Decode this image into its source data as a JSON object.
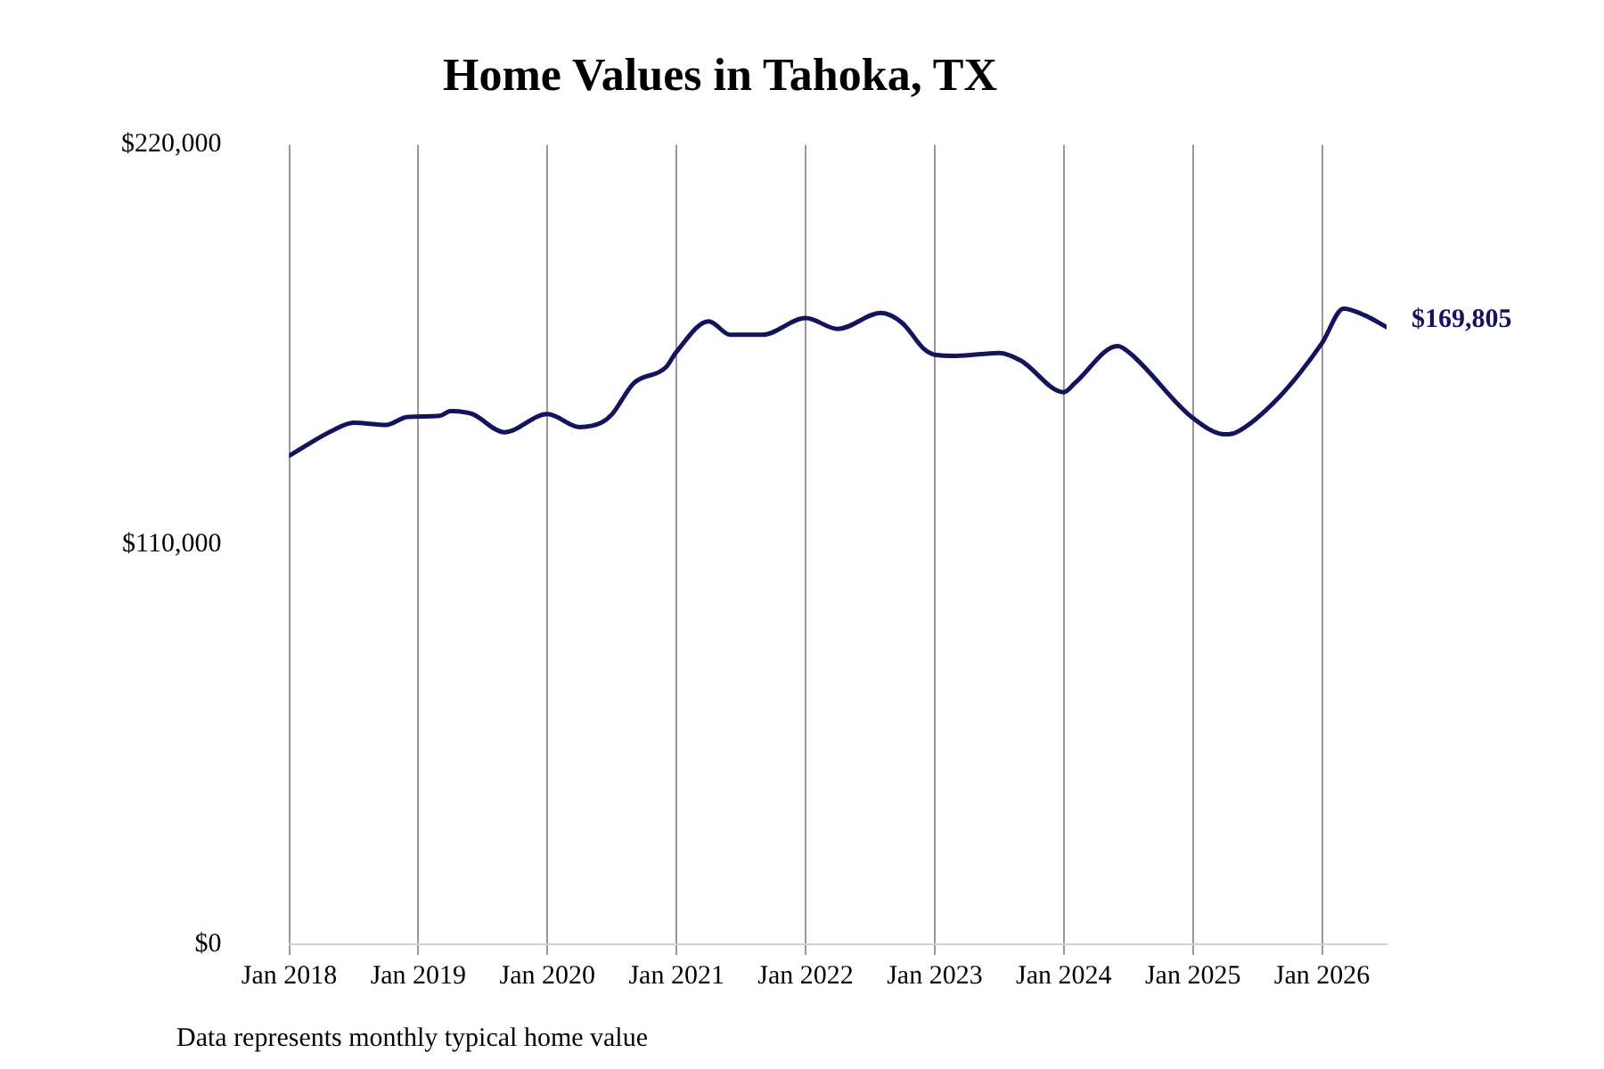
{
  "chart_data": {
    "type": "line",
    "title": "Home Values in Tahoka, TX",
    "x": [
      "2018-01",
      "2018-05",
      "2018-07",
      "2018-10",
      "2018-12",
      "2019-03",
      "2019-04",
      "2019-06",
      "2019-09",
      "2020-01",
      "2020-04",
      "2020-06",
      "2020-07",
      "2020-09",
      "2020-12",
      "2021-01",
      "2021-04",
      "2021-06",
      "2021-09",
      "2022-01",
      "2022-04",
      "2022-08",
      "2022-10",
      "2022-12",
      "2023-01",
      "2023-03",
      "2023-07",
      "2023-09",
      "2024-01",
      "2024-02",
      "2024-06",
      "2024-07",
      "2025-01",
      "2025-04",
      "2025-05",
      "2025-09",
      "2026-01",
      "2026-03",
      "2026-05",
      "2026-07"
    ],
    "series": [
      {
        "color": "#14135e",
        "values": [
          134400,
          141300,
          143500,
          142900,
          145100,
          145400,
          146700,
          145900,
          140900,
          145900,
          142300,
          143500,
          145800,
          154300,
          158700,
          163000,
          171400,
          167700,
          167700,
          172300,
          169300,
          173700,
          170900,
          163800,
          162200,
          161900,
          162700,
          160600,
          151900,
          154300,
          164600,
          163000,
          144800,
          140300,
          140800,
          150500,
          165400,
          174900,
          173000,
          169805
        ]
      }
    ],
    "xticks": [
      {
        "value": "2018-01",
        "label": "Jan 2018"
      },
      {
        "value": "2019-01",
        "label": "Jan 2019"
      },
      {
        "value": "2020-01",
        "label": "Jan 2020"
      },
      {
        "value": "2021-01",
        "label": "Jan 2021"
      },
      {
        "value": "2022-01",
        "label": "Jan 2022"
      },
      {
        "value": "2023-01",
        "label": "Jan 2023"
      },
      {
        "value": "2024-01",
        "label": "Jan 2024"
      },
      {
        "value": "2025-01",
        "label": "Jan 2025"
      },
      {
        "value": "2026-01",
        "label": "Jan 2026"
      }
    ],
    "xlim": [
      "2018-01",
      "2026-07"
    ],
    "ylim": [
      0,
      220000
    ],
    "yticks": [
      {
        "value": 0,
        "label": "$0"
      },
      {
        "value": 110000,
        "label": "$110,000"
      },
      {
        "value": 220000,
        "label": "$220,000"
      }
    ],
    "grid": "x",
    "legend": false,
    "marker": "none",
    "line_style": "solid",
    "annotations": [
      {
        "text": "$169,805",
        "x": "2026-07",
        "y": 169805
      },
      "Data represents monthly typical home value"
    ]
  }
}
